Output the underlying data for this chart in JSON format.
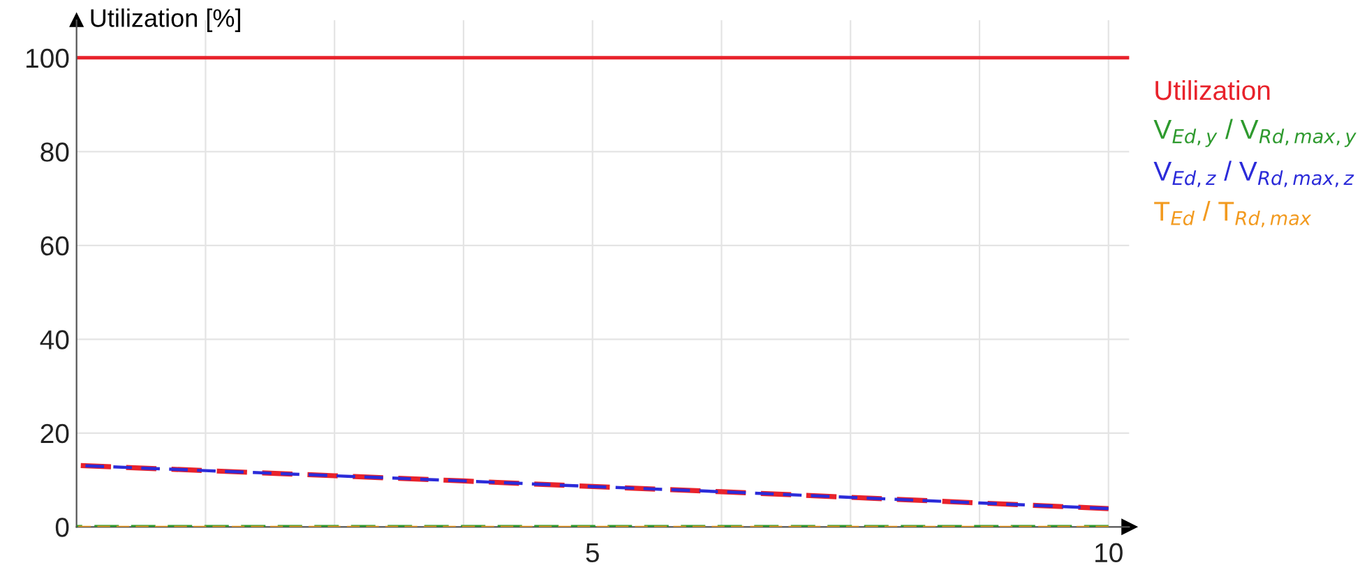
{
  "chart_data": {
    "type": "line",
    "ylabel": "Utilization [%]",
    "x": [
      0,
      1.25,
      2.5,
      3.75,
      5,
      6.25,
      7.5,
      8.75,
      10
    ],
    "series": [
      {
        "name": "Utilization",
        "color": "#e8222b",
        "values": [
          13.1,
          12.0,
          10.9,
          9.8,
          8.6,
          7.5,
          6.3,
          5.1,
          3.9
        ]
      },
      {
        "name": "V$_{Ed,y}$ / V$_{Rd,max,y}$",
        "color": "#2e9a2e",
        "values": [
          0,
          0,
          0,
          0,
          0,
          0,
          0,
          0,
          0
        ]
      },
      {
        "name": "V$_{Ed,z}$ / V$_{Rd,max,z}$",
        "color": "#2b2bd9",
        "values": [
          13.1,
          12.0,
          10.9,
          9.8,
          8.6,
          7.5,
          6.3,
          5.1,
          3.9
        ]
      },
      {
        "name": "T$_{Ed}$ / T$_{Rd,max}$",
        "color": "#f29a1f",
        "values": [
          0,
          0,
          0,
          0,
          0,
          0,
          0,
          0,
          0
        ]
      }
    ],
    "ref_lines": [
      {
        "axis": "y",
        "value": 100,
        "color": "#e8222b",
        "line_style": "solid"
      }
    ],
    "xlim": [
      0,
      10.2
    ],
    "ylim": [
      0,
      108
    ],
    "xticks": [
      {
        "value": 1.25,
        "label": null
      },
      {
        "value": 2.5,
        "label": null
      },
      {
        "value": 3.75,
        "label": null
      },
      5,
      {
        "value": 6.25,
        "label": null
      },
      {
        "value": 7.5,
        "label": null
      },
      {
        "value": 8.75,
        "label": null
      },
      10
    ],
    "yticks": [
      0,
      20,
      40,
      60,
      80,
      100
    ],
    "grid": true,
    "legend": "right",
    "line_style": "dashed",
    "marker": "none"
  }
}
